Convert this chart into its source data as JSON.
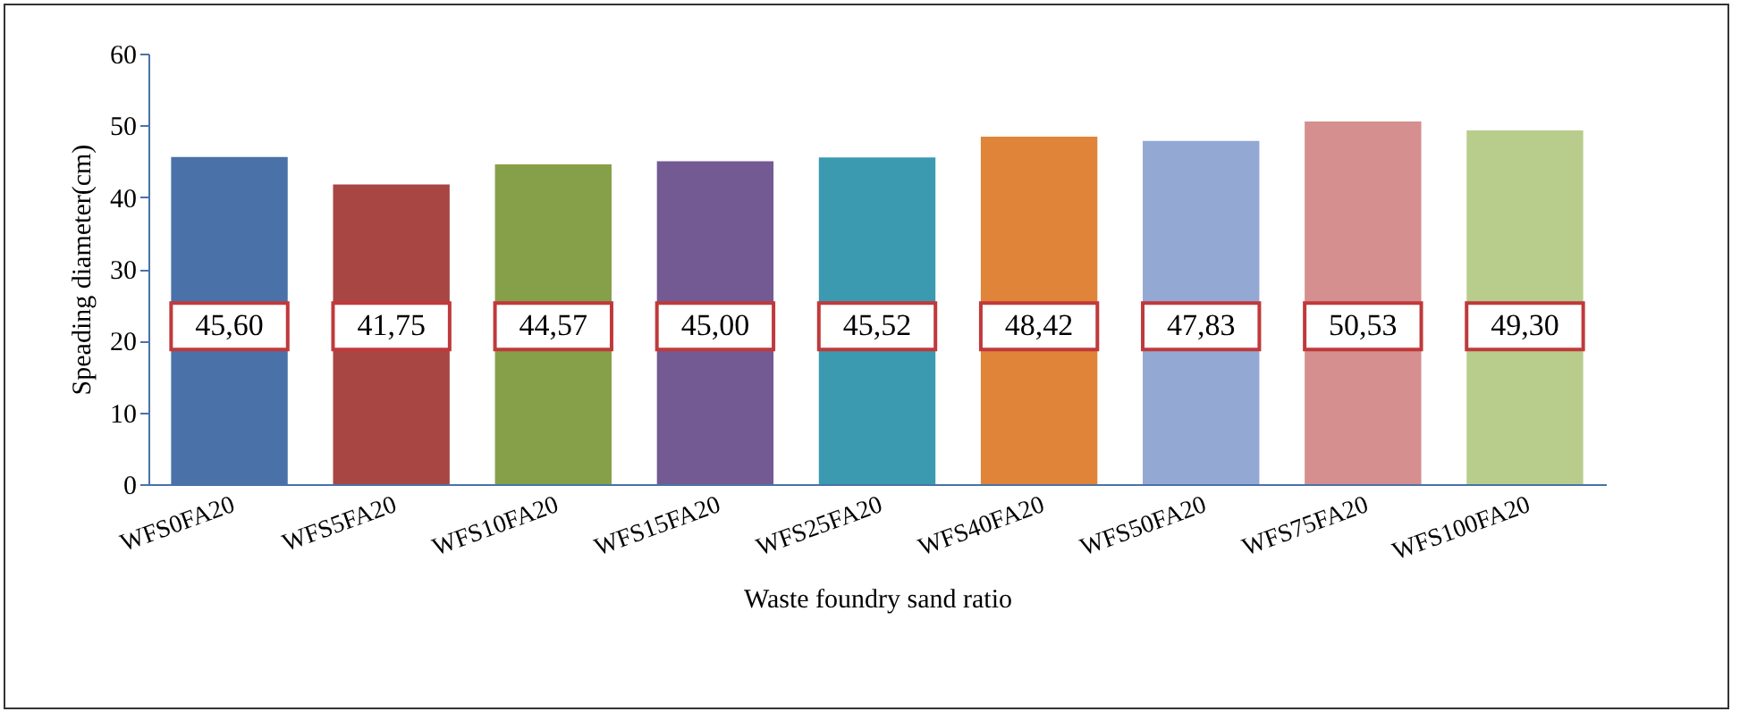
{
  "chart_data": {
    "type": "bar",
    "xlabel": "Waste foundry sand ratio",
    "ylabel": "Speading diameter(cm)",
    "categories": [
      "WFS0FA20",
      "WFS5FA20",
      "WFS10FA20",
      "WFS15FA20",
      "WFS25FA20",
      "WFS40FA20",
      "WFS50FA20",
      "WFS75FA20",
      "WFS100FA20"
    ],
    "values": [
      45.6,
      41.75,
      44.57,
      45.0,
      45.52,
      48.42,
      47.83,
      50.53,
      49.3
    ],
    "value_labels": [
      "45,60",
      "41,75",
      "44,57",
      "45,00",
      "45,52",
      "48,42",
      "47,83",
      "50,53",
      "49,30"
    ],
    "colors": [
      "#4a72a8",
      "#a84644",
      "#86a04a",
      "#735a92",
      "#3b9ab0",
      "#e0843a",
      "#93a9d4",
      "#d48f8e",
      "#b8cd8c"
    ],
    "ylim": [
      0,
      60
    ],
    "yticks": [
      0,
      10,
      20,
      30,
      40,
      50,
      60
    ],
    "grid": false
  }
}
